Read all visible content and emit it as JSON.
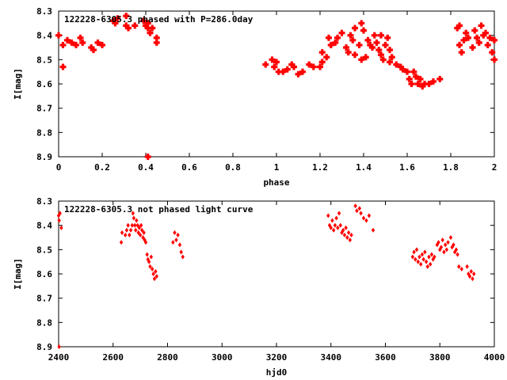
{
  "chart_data": [
    {
      "type": "scatter",
      "title": "122228-6305.3 phased with P=286.0day",
      "xlabel": "phase",
      "ylabel": "I[mag]",
      "xlim": [
        0,
        2
      ],
      "ylim": [
        8.3,
        8.9
      ],
      "y_inverted": true,
      "xticks": [
        "0",
        "0.2",
        "0.4",
        "0.6",
        "0.8",
        "1",
        "1.2",
        "1.4",
        "1.6",
        "1.8",
        "2"
      ],
      "yticks": [
        "8.3",
        "8.4",
        "8.5",
        "8.6",
        "8.7",
        "8.8",
        "8.9"
      ],
      "marker": "filled-cross",
      "color": "#ff0000",
      "grid": false,
      "series": [
        {
          "points": [
            [
              0.0,
              8.4
            ],
            [
              0.02,
              8.44
            ],
            [
              0.04,
              8.42
            ],
            [
              0.06,
              8.43
            ],
            [
              0.08,
              8.44
            ],
            [
              0.1,
              8.41
            ],
            [
              0.11,
              8.43
            ],
            [
              0.15,
              8.45
            ],
            [
              0.16,
              8.46
            ],
            [
              0.18,
              8.43
            ],
            [
              0.2,
              8.44
            ],
            [
              0.25,
              8.34
            ],
            [
              0.26,
              8.35
            ],
            [
              0.27,
              8.33
            ],
            [
              0.31,
              8.32
            ],
            [
              0.31,
              8.36
            ],
            [
              0.32,
              8.37
            ],
            [
              0.35,
              8.36
            ],
            [
              0.39,
              8.34
            ],
            [
              0.4,
              8.36
            ],
            [
              0.41,
              8.37
            ],
            [
              0.42,
              8.39
            ],
            [
              0.41,
              8.35
            ],
            [
              0.43,
              8.37
            ],
            [
              0.45,
              8.41
            ],
            [
              0.45,
              8.43
            ],
            [
              0.41,
              8.9
            ],
            [
              0.02,
              8.53
            ],
            [
              0.95,
              8.52
            ],
            [
              0.98,
              8.5
            ],
            [
              0.99,
              8.53
            ],
            [
              1.0,
              8.51
            ],
            [
              1.01,
              8.55
            ],
            [
              1.03,
              8.55
            ],
            [
              1.05,
              8.54
            ],
            [
              1.07,
              8.52
            ],
            [
              1.08,
              8.53
            ],
            [
              1.1,
              8.56
            ],
            [
              1.12,
              8.55
            ],
            [
              1.15,
              8.52
            ],
            [
              1.17,
              8.53
            ],
            [
              1.2,
              8.53
            ],
            [
              1.21,
              8.51
            ],
            [
              1.21,
              8.47
            ],
            [
              1.23,
              8.49
            ],
            [
              1.25,
              8.44
            ],
            [
              1.24,
              8.41
            ],
            [
              1.27,
              8.43
            ],
            [
              1.28,
              8.41
            ],
            [
              1.3,
              8.39
            ],
            [
              1.32,
              8.45
            ],
            [
              1.33,
              8.47
            ],
            [
              1.34,
              8.4
            ],
            [
              1.35,
              8.42
            ],
            [
              1.36,
              8.37
            ],
            [
              1.36,
              8.48
            ],
            [
              1.38,
              8.44
            ],
            [
              1.39,
              8.35
            ],
            [
              1.39,
              8.5
            ],
            [
              1.4,
              8.38
            ],
            [
              1.41,
              8.49
            ],
            [
              1.42,
              8.42
            ],
            [
              1.43,
              8.44
            ],
            [
              1.44,
              8.45
            ],
            [
              1.45,
              8.4
            ],
            [
              1.46,
              8.43
            ],
            [
              1.47,
              8.46
            ],
            [
              1.48,
              8.48
            ],
            [
              1.48,
              8.4
            ],
            [
              1.49,
              8.5
            ],
            [
              1.5,
              8.44
            ],
            [
              1.51,
              8.41
            ],
            [
              1.52,
              8.46
            ],
            [
              1.52,
              8.51
            ],
            [
              1.53,
              8.49
            ],
            [
              1.55,
              8.52
            ],
            [
              1.57,
              8.53
            ],
            [
              1.58,
              8.54
            ],
            [
              1.6,
              8.55
            ],
            [
              1.61,
              8.58
            ],
            [
              1.62,
              8.6
            ],
            [
              1.63,
              8.55
            ],
            [
              1.64,
              8.57
            ],
            [
              1.65,
              8.6
            ],
            [
              1.66,
              8.58
            ],
            [
              1.67,
              8.61
            ],
            [
              1.68,
              8.6
            ],
            [
              1.7,
              8.6
            ],
            [
              1.72,
              8.59
            ],
            [
              1.75,
              8.58
            ],
            [
              1.83,
              8.37
            ],
            [
              1.84,
              8.36
            ],
            [
              1.84,
              8.44
            ],
            [
              1.85,
              8.47
            ],
            [
              1.86,
              8.42
            ],
            [
              1.87,
              8.39
            ],
            [
              1.88,
              8.41
            ],
            [
              1.9,
              8.45
            ],
            [
              1.91,
              8.38
            ],
            [
              1.92,
              8.41
            ],
            [
              1.93,
              8.43
            ],
            [
              1.94,
              8.36
            ],
            [
              1.95,
              8.4
            ],
            [
              1.96,
              8.39
            ],
            [
              1.97,
              8.44
            ],
            [
              1.98,
              8.41
            ],
            [
              1.99,
              8.47
            ],
            [
              2.0,
              8.42
            ],
            [
              2.0,
              8.5
            ]
          ]
        }
      ]
    },
    {
      "type": "scatter",
      "title": "122228-6305.3 not phased light curve",
      "xlabel": "hjd0",
      "ylabel": "I[mag]",
      "xlim": [
        2400,
        4000
      ],
      "ylim": [
        8.3,
        8.9
      ],
      "y_inverted": true,
      "xticks": [
        "2400",
        "2600",
        "2800",
        "3000",
        "3200",
        "3400",
        "3600",
        "3800",
        "4000"
      ],
      "yticks": [
        "8.3",
        "8.4",
        "8.5",
        "8.6",
        "8.7",
        "8.8",
        "8.9"
      ],
      "marker": "small-diamond",
      "color": "#ff0000",
      "grid": false,
      "series": [
        {
          "points": [
            [
              2400,
              8.36
            ],
            [
              2402,
              8.38
            ],
            [
              2405,
              8.35
            ],
            [
              2410,
              8.41
            ],
            [
              2402,
              8.9
            ],
            [
              2630,
              8.47
            ],
            [
              2633,
              8.43
            ],
            [
              2645,
              8.44
            ],
            [
              2650,
              8.42
            ],
            [
              2655,
              8.4
            ],
            [
              2660,
              8.44
            ],
            [
              2665,
              8.42
            ],
            [
              2670,
              8.4
            ],
            [
              2673,
              8.35
            ],
            [
              2676,
              8.37
            ],
            [
              2680,
              8.4
            ],
            [
              2683,
              8.42
            ],
            [
              2686,
              8.38
            ],
            [
              2690,
              8.4
            ],
            [
              2693,
              8.43
            ],
            [
              2696,
              8.41
            ],
            [
              2700,
              8.44
            ],
            [
              2703,
              8.4
            ],
            [
              2706,
              8.42
            ],
            [
              2710,
              8.45
            ],
            [
              2713,
              8.43
            ],
            [
              2716,
              8.46
            ],
            [
              2720,
              8.47
            ],
            [
              2725,
              8.52
            ],
            [
              2728,
              8.54
            ],
            [
              2732,
              8.55
            ],
            [
              2736,
              8.57
            ],
            [
              2740,
              8.53
            ],
            [
              2744,
              8.58
            ],
            [
              2748,
              8.6
            ],
            [
              2752,
              8.62
            ],
            [
              2756,
              8.59
            ],
            [
              2760,
              8.61
            ],
            [
              2820,
              8.47
            ],
            [
              2826,
              8.43
            ],
            [
              2832,
              8.46
            ],
            [
              2838,
              8.44
            ],
            [
              2845,
              8.48
            ],
            [
              2850,
              8.51
            ],
            [
              2856,
              8.53
            ],
            [
              3390,
              8.36
            ],
            [
              3395,
              8.4
            ],
            [
              3400,
              8.41
            ],
            [
              3405,
              8.38
            ],
            [
              3410,
              8.42
            ],
            [
              3415,
              8.4
            ],
            [
              3420,
              8.37
            ],
            [
              3425,
              8.41
            ],
            [
              3430,
              8.35
            ],
            [
              3435,
              8.4
            ],
            [
              3440,
              8.43
            ],
            [
              3445,
              8.42
            ],
            [
              3450,
              8.44
            ],
            [
              3455,
              8.41
            ],
            [
              3460,
              8.45
            ],
            [
              3465,
              8.43
            ],
            [
              3470,
              8.46
            ],
            [
              3475,
              8.44
            ],
            [
              3490,
              8.32
            ],
            [
              3495,
              8.34
            ],
            [
              3505,
              8.33
            ],
            [
              3510,
              8.35
            ],
            [
              3520,
              8.37
            ],
            [
              3530,
              8.38
            ],
            [
              3540,
              8.36
            ],
            [
              3555,
              8.42
            ],
            [
              3700,
              8.53
            ],
            [
              3705,
              8.51
            ],
            [
              3710,
              8.54
            ],
            [
              3715,
              8.5
            ],
            [
              3720,
              8.55
            ],
            [
              3725,
              8.53
            ],
            [
              3730,
              8.56
            ],
            [
              3735,
              8.52
            ],
            [
              3740,
              8.54
            ],
            [
              3745,
              8.51
            ],
            [
              3750,
              8.55
            ],
            [
              3755,
              8.57
            ],
            [
              3760,
              8.53
            ],
            [
              3765,
              8.56
            ],
            [
              3770,
              8.52
            ],
            [
              3775,
              8.54
            ],
            [
              3780,
              8.53
            ],
            [
              3790,
              8.48
            ],
            [
              3795,
              8.47
            ],
            [
              3800,
              8.5
            ],
            [
              3805,
              8.49
            ],
            [
              3810,
              8.46
            ],
            [
              3815,
              8.51
            ],
            [
              3820,
              8.48
            ],
            [
              3825,
              8.5
            ],
            [
              3830,
              8.47
            ],
            [
              3840,
              8.45
            ],
            [
              3845,
              8.49
            ],
            [
              3850,
              8.48
            ],
            [
              3855,
              8.51
            ],
            [
              3860,
              8.5
            ],
            [
              3865,
              8.52
            ],
            [
              3870,
              8.57
            ],
            [
              3880,
              8.58
            ],
            [
              3900,
              8.57
            ],
            [
              3905,
              8.6
            ],
            [
              3910,
              8.61
            ],
            [
              3915,
              8.59
            ],
            [
              3920,
              8.62
            ],
            [
              3925,
              8.6
            ]
          ]
        }
      ]
    }
  ]
}
